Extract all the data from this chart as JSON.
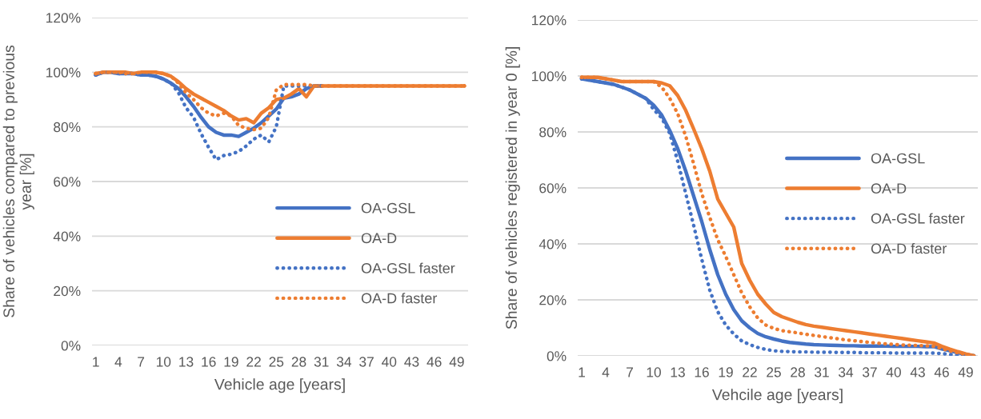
{
  "chart_data": [
    {
      "type": "line",
      "ylabel": "Share of vehicles compared to previous\nyear [%]",
      "xlabel": "Vehicle age [years]",
      "categories": [
        "1",
        null,
        null,
        "4",
        null,
        null,
        "7",
        null,
        null,
        "10",
        null,
        null,
        "13",
        null,
        null,
        "16",
        null,
        null,
        "19",
        null,
        null,
        "22",
        null,
        null,
        "25",
        null,
        null,
        "28",
        null,
        null,
        "31",
        null,
        null,
        "34",
        null,
        null,
        "37",
        null,
        null,
        "40",
        null,
        null,
        "43",
        null,
        null,
        "46",
        null,
        null,
        "49",
        null
      ],
      "ylim": [
        0,
        120
      ],
      "yticks": [
        {
          "value": 0,
          "label": "0%"
        },
        {
          "value": 20,
          "label": "20%"
        },
        {
          "value": 40,
          "label": "40%"
        },
        {
          "value": 60,
          "label": "60%"
        },
        {
          "value": 80,
          "label": "80%"
        },
        {
          "value": 100,
          "label": "100%"
        },
        {
          "value": 120,
          "label": "120%"
        }
      ],
      "grid": "y",
      "legend": "bottom right",
      "marker": "none",
      "series": [
        {
          "name": "OA-GSL",
          "color": "#4472c4",
          "line_style": "solid",
          "values": [
            99,
            100,
            100,
            99.5,
            99.5,
            99.5,
            99,
            99,
            98.5,
            97.5,
            96,
            94,
            91,
            87.5,
            83.5,
            80,
            78,
            77,
            77,
            76.5,
            78,
            79.5,
            81.5,
            84,
            86.5,
            90.5,
            91,
            92,
            94,
            95,
            95,
            null,
            null,
            null,
            null,
            null,
            null,
            null,
            null,
            null,
            null,
            null,
            null,
            null,
            null,
            null,
            null,
            null,
            null,
            null
          ]
        },
        {
          "name": "OA-D",
          "color": "#ed7d31",
          "line_style": "solid",
          "values": [
            99.5,
            100,
            100,
            100,
            100,
            99.5,
            100,
            100,
            100,
            99.5,
            98.5,
            96.5,
            94,
            92,
            90.5,
            89,
            87.5,
            86,
            84,
            82.5,
            83,
            81.5,
            85,
            87,
            90,
            90.5,
            92,
            94,
            91,
            95,
            95,
            95,
            95,
            95,
            95,
            95,
            95,
            95,
            95,
            95,
            95,
            95,
            95,
            95,
            95,
            95,
            95,
            95,
            95,
            95
          ]
        },
        {
          "name": "OA-GSL faster",
          "color": "#4472c4",
          "line_style": "dotted",
          "values": [
            99,
            100,
            100,
            99.5,
            99.5,
            99.5,
            99,
            99,
            98.5,
            97.5,
            96,
            92.5,
            87,
            83.5,
            77.5,
            72.5,
            68,
            69.5,
            70,
            71,
            73,
            75.5,
            77,
            74.5,
            80,
            95,
            95,
            95,
            95,
            95,
            95,
            null,
            null,
            null,
            null,
            null,
            null,
            null,
            null,
            null,
            null,
            null,
            null,
            null,
            null,
            null,
            null,
            null,
            null,
            null
          ]
        },
        {
          "name": "OA-D faster",
          "color": "#ed7d31",
          "line_style": "dotted",
          "values": [
            99.5,
            100,
            100,
            100,
            99.5,
            99.5,
            100,
            100,
            100,
            99.5,
            98.5,
            96,
            92.5,
            90,
            87,
            85,
            84,
            85,
            84,
            80.5,
            79.5,
            79,
            79.5,
            83.5,
            93.5,
            95.5,
            95.5,
            95.5,
            95.5,
            95,
            95,
            95,
            95,
            95,
            95,
            95,
            95,
            95,
            95,
            95,
            95,
            95,
            95,
            95,
            95,
            95,
            95,
            95,
            95,
            95
          ]
        }
      ]
    },
    {
      "type": "line",
      "ylabel": "Share of vehicles registered in year 0 [%]",
      "xlabel": "Vehcile age [years]",
      "categories": [
        "1",
        null,
        null,
        "4",
        null,
        null,
        "7",
        null,
        null,
        "10",
        null,
        null,
        "13",
        null,
        null,
        "16",
        null,
        null,
        "19",
        null,
        null,
        "22",
        null,
        null,
        "25",
        null,
        null,
        "28",
        null,
        null,
        "31",
        null,
        null,
        "34",
        null,
        null,
        "37",
        null,
        null,
        "40",
        null,
        null,
        "43",
        null,
        null,
        "46",
        null,
        null,
        "49",
        null
      ],
      "ylim": [
        0,
        120
      ],
      "yticks": [
        {
          "value": 0,
          "label": "0%"
        },
        {
          "value": 20,
          "label": "20%"
        },
        {
          "value": 40,
          "label": "40%"
        },
        {
          "value": 60,
          "label": "60%"
        },
        {
          "value": 80,
          "label": "80%"
        },
        {
          "value": 100,
          "label": "100%"
        },
        {
          "value": 120,
          "label": "120%"
        }
      ],
      "grid": "y",
      "legend": "right",
      "marker": "none",
      "series": [
        {
          "name": "OA-GSL",
          "color": "#4472c4",
          "line_style": "solid",
          "values": [
            99,
            98.5,
            98,
            97.5,
            97,
            96,
            95,
            93.5,
            92,
            89.5,
            86,
            80.5,
            74,
            66,
            57,
            48,
            38,
            29,
            22,
            16.5,
            12.5,
            10,
            8,
            6.8,
            6,
            5.3,
            4.8,
            4.5,
            4.2,
            4,
            3.9,
            3.8,
            3.7,
            3.6,
            3.6,
            3.5,
            3.5,
            3.5,
            3.5,
            3.4,
            3.4,
            3.4,
            3.4,
            3.3,
            3.3,
            2.5,
            1.8,
            1.1,
            0.5,
            0
          ]
        },
        {
          "name": "OA-D",
          "color": "#ed7d31",
          "line_style": "solid",
          "values": [
            99.5,
            99.5,
            99.5,
            99,
            98.5,
            98,
            98,
            98,
            98,
            98,
            97.5,
            96.5,
            93,
            87.7,
            81,
            74,
            66,
            56,
            51,
            46,
            33,
            27,
            22,
            18.5,
            15.5,
            14,
            13,
            12,
            11.2,
            10.6,
            10.2,
            9.8,
            9.4,
            9,
            8.6,
            8.2,
            7.8,
            7.4,
            7,
            6.6,
            6.2,
            5.8,
            5.4,
            5,
            4.6,
            3.4,
            2.4,
            1.5,
            0.7,
            0
          ]
        },
        {
          "name": "OA-GSL faster",
          "color": "#4472c4",
          "line_style": "dotted",
          "values": [
            99,
            98.5,
            98,
            97.5,
            97,
            96,
            95,
            93.5,
            92,
            88,
            85,
            79.5,
            69.5,
            58,
            46.5,
            34.5,
            23.5,
            15.8,
            11,
            7.8,
            5.3,
            4,
            3,
            2.3,
            1.8,
            1.6,
            1.5,
            1.4,
            1.4,
            1.3,
            1.3,
            1.3,
            1.2,
            1.2,
            1.2,
            1.1,
            1.1,
            1.1,
            1.1,
            1,
            1,
            1,
            1,
            1,
            1,
            0.8,
            0.5,
            0.3,
            0.1,
            0
          ]
        },
        {
          "name": "OA-D faster",
          "color": "#ed7d31",
          "line_style": "dotted",
          "values": [
            99.5,
            99.5,
            99.5,
            99,
            98.5,
            98,
            98,
            98,
            98,
            98,
            96,
            92,
            86.5,
            78.5,
            68.5,
            58,
            49.5,
            41.5,
            35.5,
            29,
            22.5,
            17.5,
            13.5,
            11,
            9.8,
            9,
            8.6,
            8.2,
            7.7,
            7.3,
            6.9,
            6.5,
            6.1,
            5.7,
            5.4,
            5.1,
            4.8,
            4.5,
            4.3,
            4.1,
            3.9,
            3.8,
            3.7,
            3.6,
            3.4,
            2.6,
            1.8,
            1.1,
            0.5,
            0
          ]
        }
      ]
    }
  ]
}
